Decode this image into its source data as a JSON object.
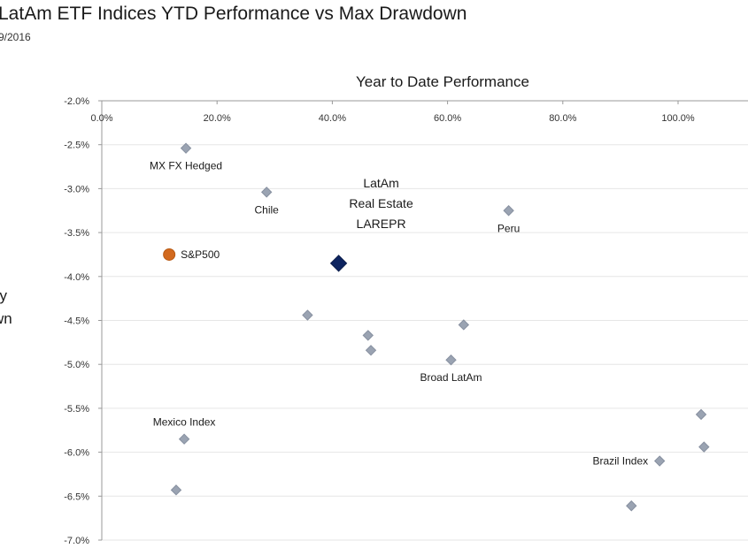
{
  "page": {
    "title": "LatAm ETF Indices YTD Performance vs Max Drawdown",
    "date": "9/2016",
    "ylabel_fragment": "ily\nwn"
  },
  "chart_data": {
    "type": "scatter",
    "title": "LatAm ETF Indices YTD Performance vs Max Drawdown",
    "xlabel": "Year to Date Performance",
    "ylabel": "",
    "xlim": [
      0,
      1.15
    ],
    "ylim": [
      -0.07,
      -0.02
    ],
    "x_ticks": [
      0,
      0.2,
      0.4,
      0.6,
      0.8,
      1.0
    ],
    "x_tick_labels": [
      "0.0%",
      "20.0%",
      "40.0%",
      "60.0%",
      "80.0%",
      "100.0%"
    ],
    "y_ticks": [
      -0.02,
      -0.025,
      -0.03,
      -0.035,
      -0.04,
      -0.045,
      -0.05,
      -0.055,
      -0.06,
      -0.065,
      -0.07
    ],
    "y_tick_labels": [
      "-2.0%",
      "-2.5%",
      "-3.0%",
      "-3.5%",
      "-4.0%",
      "-4.5%",
      "-5.0%",
      "-5.5%",
      "-6.0%",
      "-6.5%",
      "-7.0%"
    ],
    "x_axis_position": "top",
    "grid": true,
    "points": [
      {
        "label": "MX FX Hedged",
        "x": 0.146,
        "y": -0.0254,
        "marker": "diamond",
        "color": "#9aa3b2",
        "label_pos": "below"
      },
      {
        "label": "Chile",
        "x": 0.286,
        "y": -0.0304,
        "marker": "diamond",
        "color": "#9aa3b2",
        "label_pos": "below"
      },
      {
        "label": "Peru",
        "x": 0.706,
        "y": -0.0325,
        "marker": "diamond",
        "color": "#9aa3b2",
        "label_pos": "below"
      },
      {
        "label": "S&P500",
        "x": 0.117,
        "y": -0.0375,
        "marker": "circle",
        "color": "#d2691e",
        "label_pos": "right"
      },
      {
        "label": "LatAm\nReal Estate\nLAREPR",
        "x": 0.411,
        "y": -0.0385,
        "marker": "diamond-large",
        "color": "#0d2460",
        "label_pos": "above"
      },
      {
        "label": "",
        "x": 0.357,
        "y": -0.0444,
        "marker": "diamond",
        "color": "#9aa3b2"
      },
      {
        "label": "",
        "x": 0.462,
        "y": -0.0467,
        "marker": "diamond",
        "color": "#9aa3b2"
      },
      {
        "label": "",
        "x": 0.628,
        "y": -0.0455,
        "marker": "diamond",
        "color": "#9aa3b2"
      },
      {
        "label": "",
        "x": 0.467,
        "y": -0.0484,
        "marker": "diamond",
        "color": "#9aa3b2"
      },
      {
        "label": "Broad LatAm",
        "x": 0.606,
        "y": -0.0495,
        "marker": "diamond",
        "color": "#9aa3b2",
        "label_pos": "below"
      },
      {
        "label": "Mexico Index",
        "x": 0.143,
        "y": -0.0585,
        "marker": "diamond",
        "color": "#9aa3b2",
        "label_pos": "above"
      },
      {
        "label": "",
        "x": 0.129,
        "y": -0.0643,
        "marker": "diamond",
        "color": "#9aa3b2"
      },
      {
        "label": "",
        "x": 1.04,
        "y": -0.0557,
        "marker": "diamond",
        "color": "#9aa3b2"
      },
      {
        "label": "",
        "x": 1.045,
        "y": -0.0594,
        "marker": "diamond",
        "color": "#9aa3b2"
      },
      {
        "label": "Brazil Index",
        "x": 0.968,
        "y": -0.061,
        "marker": "diamond",
        "color": "#9aa3b2",
        "label_pos": "left"
      },
      {
        "label": "",
        "x": 0.919,
        "y": -0.0661,
        "marker": "diamond",
        "color": "#9aa3b2"
      }
    ]
  }
}
